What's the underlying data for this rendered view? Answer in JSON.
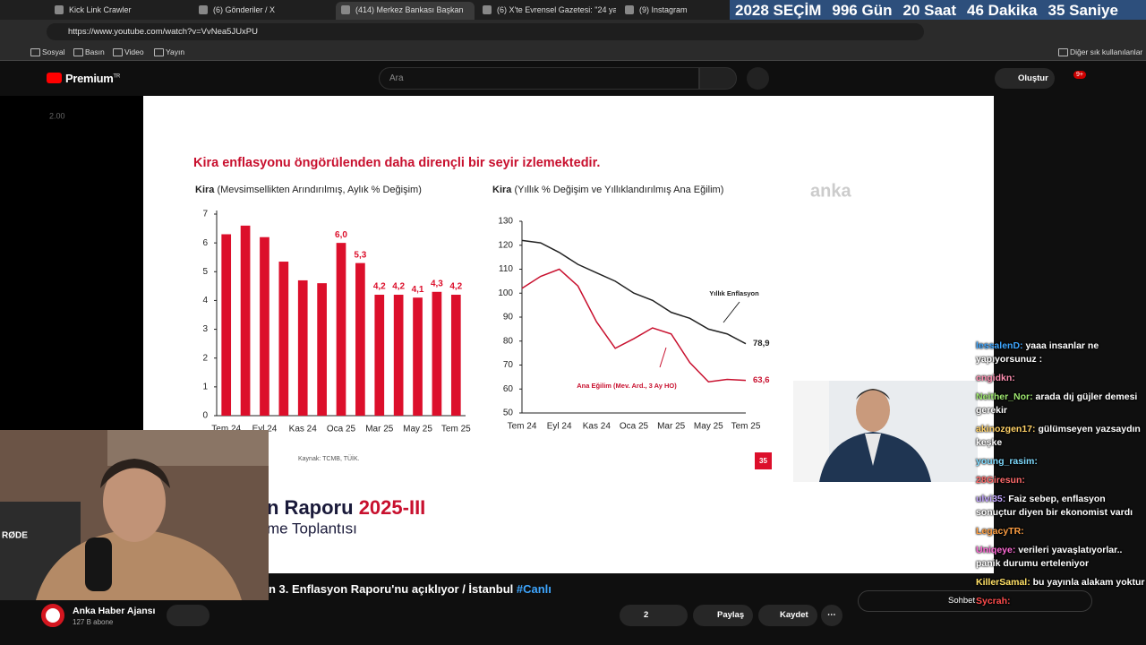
{
  "browser": {
    "tabs": [
      "Kick Link Crawler",
      "(6) Gönderiler / X",
      "(414) Merkez Bankası Başkan",
      "(6) X'te Evrensel Gazetesi: \"24 ya",
      "(9) Instagram"
    ],
    "countdown": [
      "2028 SEÇİM",
      "996 Gün",
      "20 Saat",
      "46 Dakika",
      "35 Saniye"
    ],
    "url": "https://www.youtube.com/watch?v=VvNea5JUxPU",
    "bookmarks": [
      "Sosyal",
      "Basın",
      "Video",
      "Yayın"
    ],
    "bookmarks_other": "Diğer sık kullanılanlar"
  },
  "youtube": {
    "logo": "Premium",
    "logo_sup": "TR",
    "search_placeholder": "Ara",
    "create": "Oluştur",
    "notifications": "9+"
  },
  "player": {
    "speed": "2.00"
  },
  "slide": {
    "title": "Kira enflasyonu öngörülenden daha dirençli bir seyir izlemektedir.",
    "watermark": "anka",
    "source": "Kaynak: TCMB, TÜİK.",
    "page": "35",
    "banner_1": "n Raporu",
    "banner_2": "2025-III",
    "banner_3": "me Toplantısı",
    "bar_chart": {
      "type": "bar",
      "title": "Kira",
      "subtitle": "(Mevsimsellikten Arındırılmış, Aylık % Değişim)",
      "categories": [
        "Tem 24",
        null,
        "Eyl 24",
        null,
        "Kas 24",
        null,
        "Oca 25",
        null,
        "Mar 25",
        null,
        "May 25",
        null,
        "Tem 25"
      ],
      "values": [
        6.3,
        6.6,
        6.2,
        5.35,
        4.7,
        4.6,
        6.0,
        5.3,
        4.2,
        4.2,
        4.1,
        4.3,
        4.2
      ],
      "value_labels": [
        null,
        null,
        null,
        null,
        null,
        null,
        "6,0",
        "5,3",
        "4,2",
        "4,2",
        "4,1",
        "4,3",
        "4,2"
      ],
      "color": "#dc0f2b",
      "ylim": [
        0,
        7
      ],
      "yticks": [
        0,
        1,
        2,
        3,
        4,
        5,
        6,
        7
      ]
    },
    "line_chart": {
      "type": "line",
      "title": "Kira",
      "subtitle": "(Yıllık % Değişim ve Yıllıklandırılmış Ana Eğilim)",
      "categories": [
        "Tem 24",
        null,
        "Eyl 24",
        null,
        "Kas 24",
        null,
        "Oca 25",
        null,
        "Mar 25",
        null,
        "May 25",
        null,
        "Tem 25"
      ],
      "series": [
        {
          "name": "Yıllık Enflasyon",
          "color": "#222222",
          "values": [
            122,
            121,
            117,
            112,
            108.5,
            105,
            100,
            97,
            92,
            89.5,
            85,
            83,
            78.9
          ],
          "value_labels": [
            null,
            null,
            null,
            null,
            null,
            null,
            null,
            null,
            null,
            null,
            null,
            null,
            "78,9"
          ]
        },
        {
          "name": "Ana Eğilim (Mev. Ard., 3 Ay HO)",
          "color": "#c8102e",
          "values": [
            102,
            107,
            110,
            103,
            88,
            77,
            81,
            85.5,
            83,
            71,
            63,
            64,
            63.6
          ],
          "value_labels": [
            null,
            null,
            null,
            null,
            null,
            null,
            null,
            null,
            null,
            null,
            null,
            null,
            "63,6"
          ]
        }
      ],
      "ylim": [
        50,
        130
      ],
      "yticks": [
        50,
        60,
        70,
        80,
        90,
        100,
        110,
        120,
        130
      ]
    }
  },
  "video": {
    "title": "n 3. Enflasyon Raporu'nu açıklıyor / İstanbul",
    "hashtag": "#Canlı",
    "channel": "Anka Haber Ajansı",
    "subscribers": "127 B abone",
    "likes": "2",
    "share": "Paylaş",
    "save": "Kaydet"
  },
  "chat": {
    "label": "Sohbet",
    "messages": [
      {
        "user": "lessalenD:",
        "text": "yaaa insanlar ne yapıyorsunuz :"
      },
      {
        "user": "cngidkn:"
      },
      {
        "user": "Neither_Nor:",
        "text": "arada dıj güjler demesi gerekir"
      },
      {
        "user": "akinozgen17:",
        "text": "gülümseyen yazsaydın keşke"
      },
      {
        "user": "young_rasim:"
      },
      {
        "user": "28Giresun:"
      },
      {
        "user": "ulvi35:",
        "text": "Faiz sebep, enflasyon sonuçtur diyen bir ekonomist vardı"
      },
      {
        "user": "LegacyTR:"
      },
      {
        "user": "Uniqeye:",
        "text": "verileri yavaşlatıyorlar.. panik durumu erteleniyor"
      },
      {
        "user": "KillerSamal:",
        "text": "bu yayınla alakam yoktur"
      },
      {
        "user": "Sycrah:"
      }
    ]
  }
}
